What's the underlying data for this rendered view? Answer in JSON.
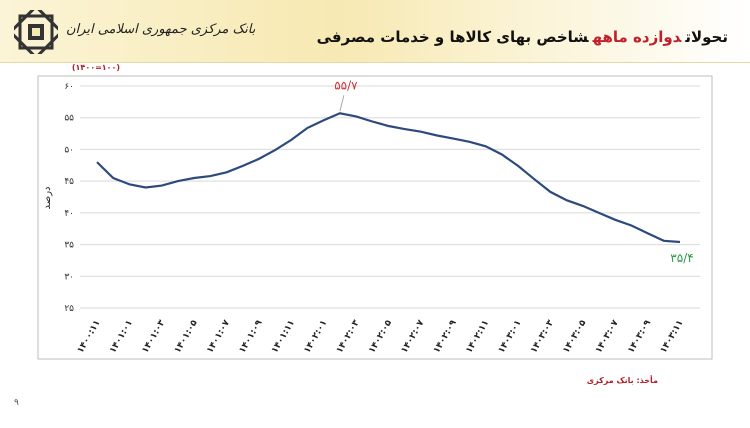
{
  "header": {
    "bank_name": "بانک مرکزی جمهوری اسلامی ایران",
    "title_parts": [
      {
        "text": "تحولات",
        "color": "#111111"
      },
      {
        "text": "دوازده ماهه",
        "color": "#c0202a"
      },
      {
        "text": "شاخص بهای کالاها و خدمات مصرفی",
        "color": "#111111"
      }
    ]
  },
  "chart_data": {
    "type": "line",
    "y_unit": "(۱۴۰۰=۱۰۰)",
    "y_label": "درصد",
    "color": "#2e4a7d",
    "categories": [
      "۱۴۰۰:۱۱",
      null,
      "۱۴۰۱:۰۱",
      null,
      "۱۴۰۱:۰۳",
      null,
      "۱۴۰۱:۰۵",
      null,
      "۱۴۰۱:۰۷",
      null,
      "۱۴۰۱:۰۹",
      null,
      "۱۴۰۱:۱۱",
      null,
      "۱۴۰۲:۰۱",
      null,
      "۱۴۰۲:۰۳",
      null,
      "۱۴۰۲:۰۵",
      null,
      "۱۴۰۲:۰۷",
      null,
      "۱۴۰۲:۰۹",
      null,
      "۱۴۰۲:۱۱",
      null,
      "۱۴۰۳:۰۱",
      null,
      "۱۴۰۳:۰۳",
      null,
      "۱۴۰۳:۰۵",
      null,
      "۱۴۰۳:۰۷",
      null,
      "۱۴۰۳:۰۹",
      null,
      "۱۴۰۳:۱۱"
    ],
    "values": [
      48.0,
      45.5,
      44.5,
      44.0,
      44.3,
      45.0,
      45.5,
      45.8,
      46.4,
      47.4,
      48.5,
      49.9,
      51.5,
      53.4,
      54.6,
      55.7,
      55.2,
      54.4,
      53.7,
      53.2,
      52.8,
      52.2,
      51.7,
      51.2,
      50.5,
      49.2,
      47.4,
      45.3,
      43.3,
      42.0,
      41.1,
      40.0,
      38.9,
      38.0,
      36.8,
      35.6,
      35.4
    ],
    "value_labels": [
      null,
      null,
      null,
      null,
      null,
      null,
      null,
      null,
      null,
      null,
      null,
      null,
      null,
      null,
      null,
      "۵۵/۷",
      null,
      null,
      null,
      null,
      null,
      null,
      null,
      null,
      null,
      null,
      null,
      null,
      null,
      null,
      null,
      null,
      null,
      null,
      null,
      null,
      "۳۵/۴"
    ],
    "value_label_colors": [
      null,
      null,
      null,
      null,
      null,
      null,
      null,
      null,
      null,
      null,
      null,
      null,
      null,
      null,
      null,
      "#d0343a",
      null,
      null,
      null,
      null,
      null,
      null,
      null,
      null,
      null,
      null,
      null,
      null,
      null,
      null,
      null,
      null,
      null,
      null,
      null,
      null,
      "#2e9a4a"
    ],
    "ylim": [
      25,
      60
    ],
    "yticks": [
      {
        "value": 25,
        "label": "۲۵"
      },
      {
        "value": 30,
        "label": "۳۰"
      },
      {
        "value": 35,
        "label": "۳۵"
      },
      {
        "value": 40,
        "label": "۴۰"
      },
      {
        "value": 45,
        "label": "۴۵"
      },
      {
        "value": 50,
        "label": "۵۰"
      },
      {
        "value": 55,
        "label": "۵۵"
      },
      {
        "value": 60,
        "label": "۶۰"
      }
    ],
    "grid": true,
    "grid_color": "#d9d9d9"
  },
  "footer": {
    "source": "مأخذ: بانک مرکزی",
    "page_number": "۹"
  }
}
